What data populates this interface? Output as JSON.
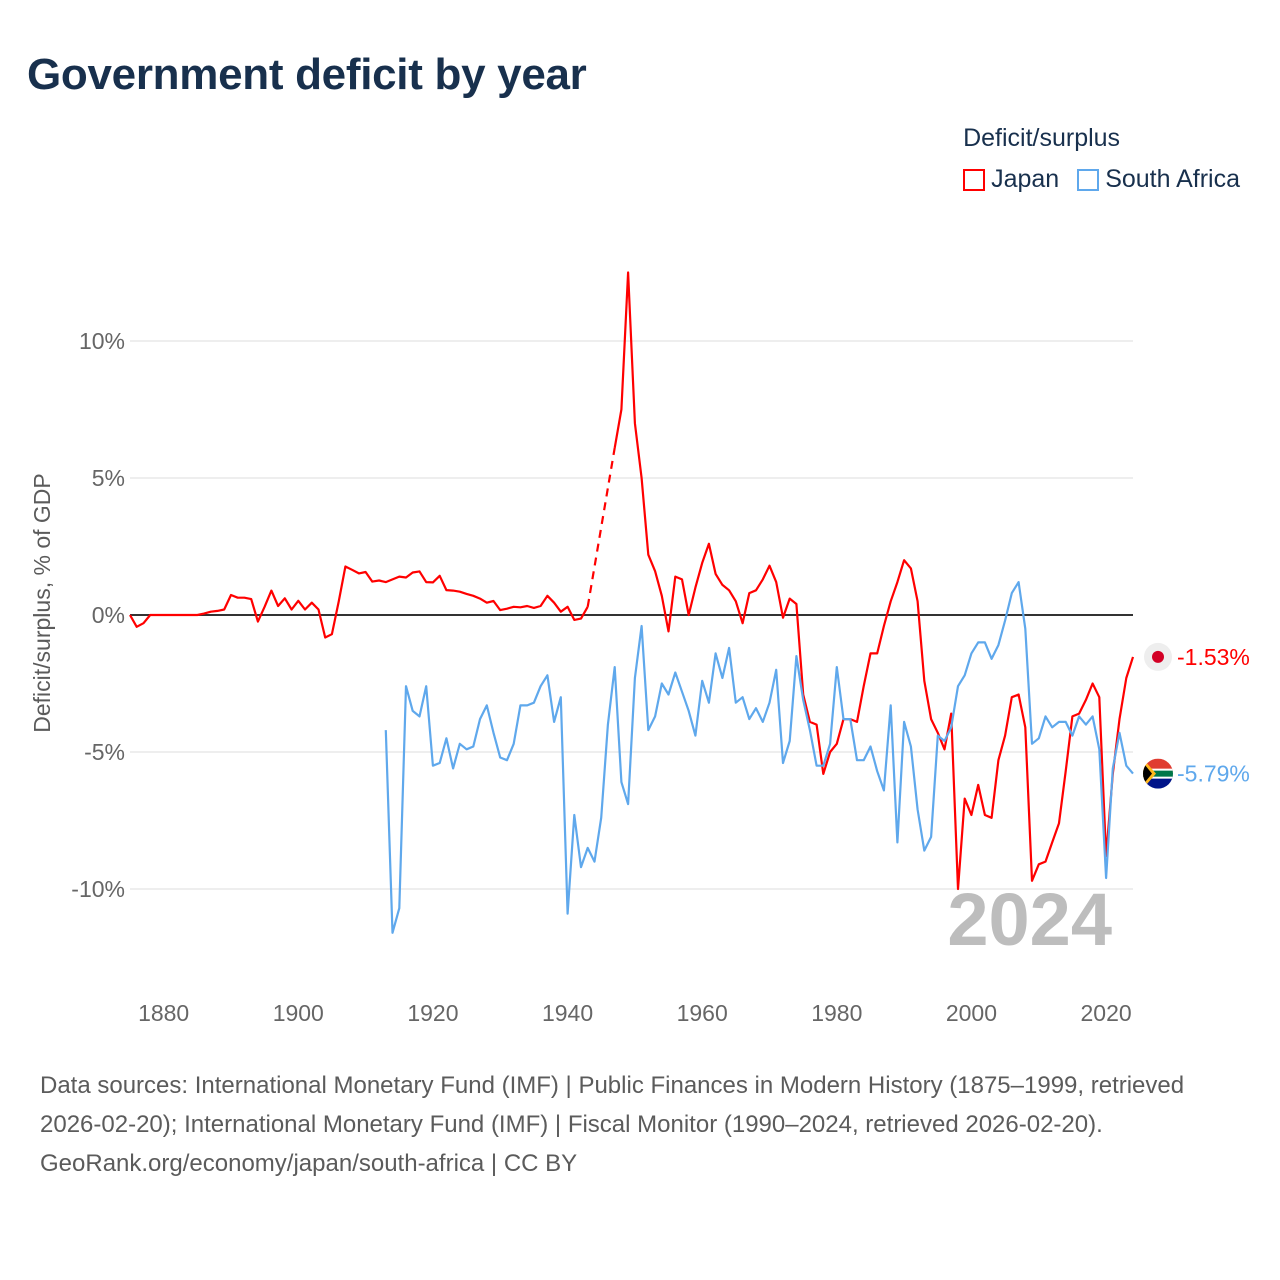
{
  "title": "Government deficit by year",
  "legend": {
    "title": "Deficit/surplus",
    "items": [
      {
        "label": "Japan",
        "color": "#ff0000"
      },
      {
        "label": "South Africa",
        "color": "#5fa8ec"
      }
    ]
  },
  "year_watermark": "2024",
  "footer": {
    "sources": "Data sources: International Monetary Fund (IMF) | Public Finances in Modern History (1875–1999, retrieved 2026-02-20); International Monetary Fund (IMF) | Fiscal Monitor (1990–2024, retrieved 2026-02-20).",
    "link": "GeoRank.org/economy/japan/south-africa",
    "license": " | CC BY"
  },
  "chart_data": {
    "type": "line",
    "title": "Government deficit by year",
    "xlabel": "",
    "ylabel": "Deficit/surplus, % of GDP",
    "xlim": [
      1875,
      2024
    ],
    "ylim": [
      -12.5,
      13
    ],
    "grid": true,
    "legend_position": "top-right",
    "x_ticks": [
      1880,
      1900,
      1920,
      1940,
      1960,
      1980,
      2000,
      2020
    ],
    "y_ticks": [
      {
        "value": 10,
        "label": "10%"
      },
      {
        "value": 5,
        "label": "5%"
      },
      {
        "value": 0,
        "label": "0%"
      },
      {
        "value": -5,
        "label": "-5%"
      },
      {
        "value": -10,
        "label": "-10%"
      }
    ],
    "series": [
      {
        "name": "Japan",
        "color": "#ff0000",
        "start_year": 1875,
        "end_label": "-1.53%",
        "values": [
          0,
          -0.43,
          -0.3,
          0,
          0,
          0,
          0,
          0,
          0,
          0,
          0,
          0.05,
          0.12,
          0.15,
          0.2,
          0.73,
          0.63,
          0.63,
          0.58,
          -0.24,
          0.3,
          0.89,
          0.33,
          0.61,
          0.2,
          0.52,
          0.2,
          0.45,
          0.2,
          -0.82,
          -0.7,
          0.49,
          1.77,
          1.65,
          1.52,
          1.57,
          1.22,
          1.26,
          1.2,
          1.3,
          1.4,
          1.37,
          1.55,
          1.59,
          1.2,
          1.19,
          1.43,
          0.91,
          0.89,
          0.85,
          0.77,
          0.7,
          0.6,
          0.45,
          0.51,
          0.18,
          0.23,
          0.3,
          0.28,
          0.33,
          0.26,
          0.33,
          0.7,
          0.45,
          0.12,
          0.3,
          -0.18,
          -0.13,
          0.3,
          null,
          null,
          null,
          6.1,
          7.5,
          12.5,
          7.0,
          5.0,
          2.2,
          1.6,
          0.7,
          -0.6,
          1.4,
          1.3,
          0,
          1.0,
          1.9,
          2.6,
          1.5,
          1.1,
          0.9,
          0.5,
          -0.3,
          0.8,
          0.9,
          1.3,
          1.8,
          1.2,
          -0.1,
          0.6,
          0.4,
          -2.9,
          -3.9,
          -4.0,
          -5.8,
          -5.0,
          -4.7,
          -3.8,
          -3.8,
          -3.9,
          -2.6,
          -1.4,
          -1.4,
          -0.4,
          0.5,
          1.2,
          2.0,
          1.7,
          0.5,
          -2.4,
          -3.8,
          -4.3,
          -4.9,
          -3.6,
          -10.0,
          -6.7,
          -7.3,
          -6.2,
          -7.3,
          -7.4,
          -5.3,
          -4.4,
          -3.0,
          -2.9,
          -4.1,
          -9.7,
          -9.1,
          -9.0,
          -8.3,
          -7.6,
          -5.7,
          -3.7,
          -3.6,
          -3.1,
          -2.5,
          -3.0,
          -8.8,
          -5.8,
          -3.8,
          -2.3,
          -1.53
        ]
      },
      {
        "name": "South Africa",
        "color": "#5fa8ec",
        "start_year": 1913,
        "end_label": "-5.79%",
        "values": [
          -4.2,
          -11.6,
          -10.7,
          -2.6,
          -3.5,
          -3.7,
          -2.6,
          -5.5,
          -5.4,
          -4.5,
          -5.6,
          -4.7,
          -4.9,
          -4.8,
          -3.8,
          -3.3,
          -4.3,
          -5.2,
          -5.3,
          -4.7,
          -3.3,
          -3.3,
          -3.2,
          -2.6,
          -2.2,
          -3.9,
          -3.0,
          -10.9,
          -7.3,
          -9.2,
          -8.5,
          -9.0,
          -7.4,
          -4.0,
          -1.9,
          -6.1,
          -6.9,
          -2.3,
          -0.4,
          -4.2,
          -3.7,
          -2.5,
          -2.9,
          -2.1,
          -2.8,
          -3.5,
          -4.4,
          -2.4,
          -3.2,
          -1.4,
          -2.3,
          -1.2,
          -3.2,
          -3.0,
          -3.8,
          -3.4,
          -3.9,
          -3.2,
          -2.0,
          -5.4,
          -4.6,
          -1.5,
          -3.1,
          -4.2,
          -5.5,
          -5.5,
          -4.7,
          -1.9,
          -3.8,
          -3.8,
          -5.3,
          -5.3,
          -4.8,
          -5.7,
          -6.4,
          -3.3,
          -8.3,
          -3.9,
          -4.8,
          -7.1,
          -8.6,
          -8.1,
          -4.4,
          -4.6,
          -4.1,
          -2.6,
          -2.2,
          -1.4,
          -1.0,
          -1.0,
          -1.6,
          -1.1,
          -0.2,
          0.8,
          1.2,
          -0.5,
          -4.7,
          -4.5,
          -3.7,
          -4.1,
          -3.9,
          -3.9,
          -4.4,
          -3.7,
          -4.0,
          -3.7,
          -4.9,
          -9.6,
          -5.6,
          -4.3,
          -5.5,
          -5.79
        ]
      }
    ]
  }
}
